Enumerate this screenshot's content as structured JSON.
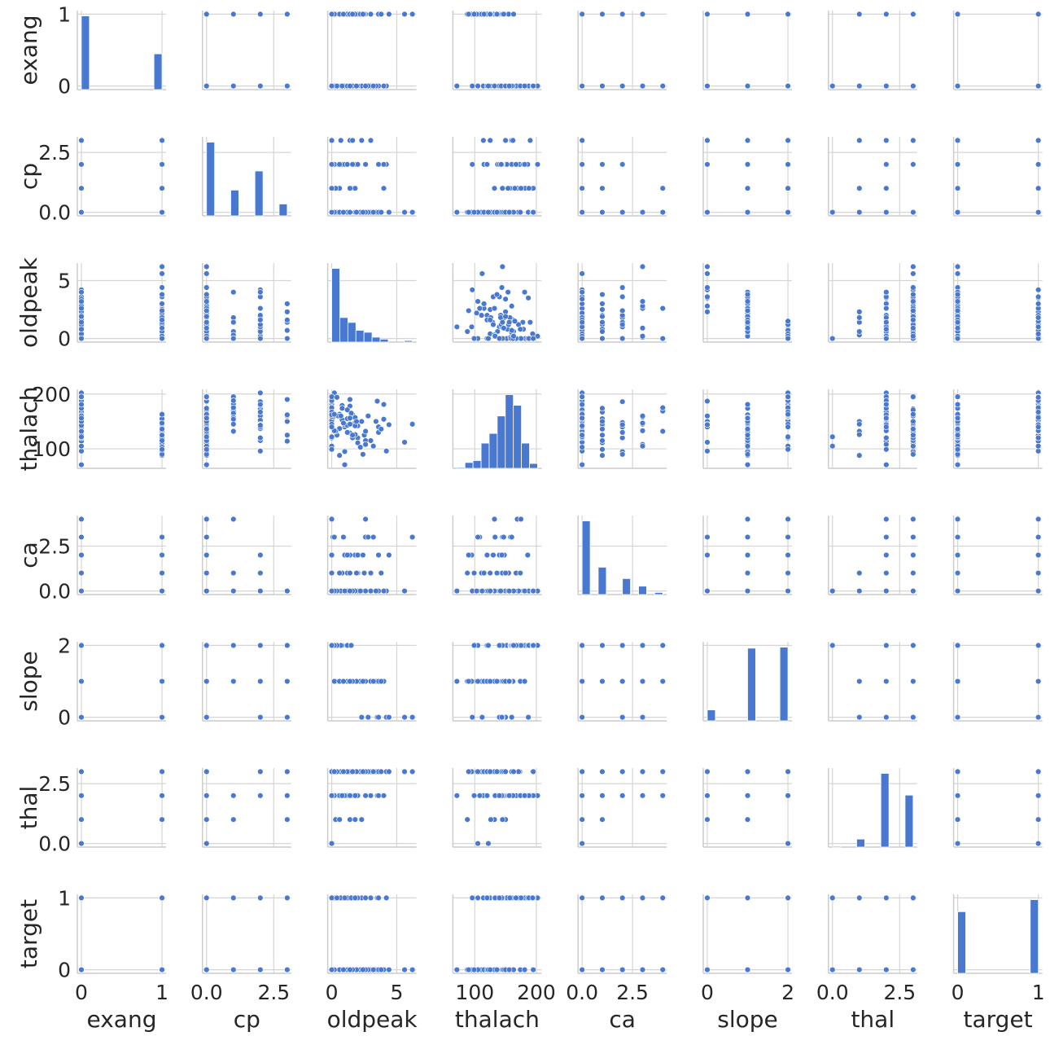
{
  "chart_data": {
    "type": "pairplot",
    "color": "#4878cf",
    "grid": true,
    "variables": [
      {
        "name": "exang",
        "range": [
          0,
          1
        ],
        "ticks": [
          0,
          1
        ],
        "tick_labels": [
          "0",
          "1"
        ]
      },
      {
        "name": "cp",
        "range": [
          0,
          3
        ],
        "ticks": [
          0,
          2.5
        ],
        "tick_labels": [
          "0.0",
          "2.5"
        ]
      },
      {
        "name": "oldpeak",
        "range": [
          0,
          6.2
        ],
        "ticks": [
          0,
          5
        ],
        "tick_labels": [
          "0",
          "5"
        ]
      },
      {
        "name": "thalach",
        "range": [
          71,
          202
        ],
        "ticks": [
          100,
          200
        ],
        "tick_labels": [
          "100",
          "200"
        ]
      },
      {
        "name": "ca",
        "range": [
          0,
          4
        ],
        "ticks": [
          0,
          2.5
        ],
        "tick_labels": [
          "0.0",
          "2.5"
        ]
      },
      {
        "name": "slope",
        "range": [
          0,
          2
        ],
        "ticks": [
          0,
          2
        ],
        "tick_labels": [
          "0",
          "2"
        ]
      },
      {
        "name": "thal",
        "range": [
          0,
          3
        ],
        "ticks": [
          0,
          2.5
        ],
        "tick_labels": [
          "0.0",
          "2.5"
        ]
      },
      {
        "name": "target",
        "range": [
          0,
          1
        ],
        "ticks": [
          0,
          1
        ],
        "tick_labels": [
          "0",
          "1"
        ]
      }
    ],
    "histograms": {
      "bins": 10,
      "exang": [
        204,
        0,
        0,
        0,
        0,
        0,
        0,
        0,
        0,
        99
      ],
      "cp": [
        143,
        0,
        0,
        50,
        0,
        0,
        87,
        0,
        0,
        23
      ],
      "oldpeak": [
        150,
        50,
        40,
        24,
        20,
        10,
        6,
        0,
        0,
        3
      ],
      "thalach": [
        1,
        6,
        8,
        26,
        36,
        54,
        76,
        65,
        26,
        5
      ],
      "ca": [
        175,
        0,
        65,
        0,
        0,
        38,
        0,
        20,
        0,
        5
      ],
      "slope": [
        21,
        0,
        0,
        0,
        0,
        140,
        0,
        0,
        0,
        142
      ],
      "thal": [
        2,
        0,
        0,
        18,
        0,
        0,
        166,
        0,
        0,
        117
      ],
      "target": [
        138,
        0,
        0,
        0,
        0,
        0,
        0,
        0,
        0,
        165
      ]
    },
    "columns": [
      "exang",
      "cp",
      "oldpeak",
      "thalach",
      "ca",
      "slope",
      "thal",
      "target"
    ],
    "records": [
      [
        0,
        2,
        0.0,
        172,
        0,
        2,
        2,
        1
      ],
      [
        0,
        1,
        1.4,
        178,
        0,
        2,
        2,
        1
      ],
      [
        0,
        1,
        0.6,
        163,
        0,
        2,
        2,
        1
      ],
      [
        0,
        0,
        3.5,
        187,
        0,
        0,
        2,
        1
      ],
      [
        1,
        0,
        0.8,
        153,
        0,
        2,
        2,
        1
      ],
      [
        0,
        2,
        0.0,
        173,
        0,
        2,
        3,
        1
      ],
      [
        0,
        2,
        1.6,
        162,
        0,
        1,
        2,
        1
      ],
      [
        0,
        3,
        2.3,
        150,
        0,
        0,
        1,
        1
      ],
      [
        0,
        1,
        0.0,
        174,
        1,
        2,
        2,
        1
      ],
      [
        0,
        2,
        0.5,
        160,
        0,
        2,
        2,
        1
      ],
      [
        0,
        0,
        1.0,
        140,
        0,
        1,
        2,
        1
      ],
      [
        1,
        0,
        1.2,
        155,
        1,
        1,
        2,
        1
      ],
      [
        0,
        3,
        1.4,
        190,
        0,
        2,
        2,
        1
      ],
      [
        0,
        2,
        0.2,
        202,
        0,
        2,
        2,
        1
      ],
      [
        0,
        1,
        0.0,
        195,
        0,
        2,
        2,
        1
      ],
      [
        0,
        2,
        1.8,
        148,
        2,
        1,
        2,
        1
      ],
      [
        0,
        0,
        0.4,
        125,
        0,
        1,
        3,
        1
      ],
      [
        1,
        2,
        2.6,
        115,
        0,
        1,
        2,
        1
      ],
      [
        0,
        1,
        0.0,
        169,
        4,
        2,
        2,
        1
      ],
      [
        0,
        2,
        0.0,
        152,
        0,
        2,
        2,
        1
      ],
      [
        0,
        3,
        3.0,
        114,
        0,
        1,
        2,
        1
      ],
      [
        0,
        0,
        0.1,
        158,
        3,
        2,
        2,
        1
      ],
      [
        0,
        2,
        0.8,
        179,
        0,
        2,
        2,
        1
      ],
      [
        0,
        1,
        0.0,
        182,
        0,
        2,
        2,
        1
      ],
      [
        0,
        2,
        4.2,
        96,
        0,
        0,
        3,
        1
      ],
      [
        0,
        2,
        0.6,
        137,
        1,
        1,
        2,
        1
      ],
      [
        1,
        0,
        2.0,
        142,
        0,
        1,
        3,
        1
      ],
      [
        0,
        3,
        0.0,
        159,
        0,
        2,
        2,
        1
      ],
      [
        0,
        0,
        1.2,
        171,
        0,
        2,
        3,
        1
      ],
      [
        0,
        2,
        0.0,
        186,
        2,
        2,
        2,
        1
      ],
      [
        0,
        1,
        1.5,
        165,
        0,
        2,
        2,
        1
      ],
      [
        0,
        2,
        0.0,
        145,
        1,
        2,
        3,
        1
      ],
      [
        1,
        1,
        0.3,
        132,
        0,
        1,
        1,
        1
      ],
      [
        0,
        0,
        0.0,
        105,
        0,
        2,
        0,
        1
      ],
      [
        0,
        2,
        2.0,
        120,
        2,
        1,
        2,
        1
      ],
      [
        0,
        3,
        0.7,
        160,
        0,
        2,
        3,
        1
      ],
      [
        0,
        1,
        0.0,
        175,
        4,
        2,
        2,
        1
      ],
      [
        0,
        2,
        1.0,
        144,
        0,
        1,
        2,
        1
      ],
      [
        0,
        0,
        0.2,
        133,
        3,
        1,
        2,
        1
      ],
      [
        0,
        1,
        0.0,
        188,
        0,
        2,
        2,
        1
      ],
      [
        0,
        2,
        3.6,
        140,
        0,
        0,
        2,
        1
      ],
      [
        1,
        0,
        0.0,
        120,
        0,
        2,
        2,
        1
      ],
      [
        0,
        2,
        0.0,
        167,
        1,
        2,
        2,
        1
      ],
      [
        0,
        0,
        0.4,
        194,
        0,
        2,
        3,
        1
      ],
      [
        0,
        1,
        1.8,
        157,
        0,
        1,
        2,
        1
      ],
      [
        1,
        0,
        6.2,
        145,
        3,
        0,
        3,
        0
      ],
      [
        1,
        0,
        5.6,
        112,
        0,
        0,
        3,
        0
      ],
      [
        0,
        0,
        1.0,
        71,
        0,
        1,
        2,
        0
      ],
      [
        1,
        0,
        2.6,
        108,
        3,
        1,
        2,
        0
      ],
      [
        1,
        0,
        1.4,
        129,
        2,
        1,
        3,
        0
      ],
      [
        1,
        0,
        2.5,
        125,
        1,
        1,
        3,
        0
      ],
      [
        0,
        0,
        3.4,
        150,
        0,
        1,
        3,
        0
      ],
      [
        1,
        0,
        3.6,
        130,
        2,
        1,
        3,
        0
      ],
      [
        1,
        0,
        1.8,
        142,
        0,
        1,
        3,
        0
      ],
      [
        0,
        1,
        4.0,
        154,
        0,
        1,
        2,
        0
      ],
      [
        1,
        0,
        2.0,
        111,
        1,
        1,
        3,
        0
      ],
      [
        1,
        0,
        0.0,
        140,
        2,
        2,
        3,
        0
      ],
      [
        0,
        2,
        1.2,
        143,
        1,
        1,
        3,
        0
      ],
      [
        1,
        0,
        4.4,
        144,
        2,
        0,
        3,
        0
      ],
      [
        0,
        0,
        0.8,
        174,
        1,
        1,
        2,
        0
      ],
      [
        1,
        0,
        1.0,
        95,
        2,
        1,
        3,
        0
      ],
      [
        0,
        3,
        0.0,
        162,
        0,
        2,
        2,
        0
      ],
      [
        1,
        0,
        3.0,
        115,
        1,
        1,
        3,
        0
      ],
      [
        0,
        0,
        2.8,
        160,
        3,
        0,
        3,
        0
      ],
      [
        1,
        0,
        0.6,
        88,
        1,
        1,
        1,
        0
      ],
      [
        0,
        2,
        1.6,
        120,
        0,
        1,
        3,
        0
      ],
      [
        1,
        0,
        2.2,
        103,
        0,
        1,
        3,
        0
      ],
      [
        0,
        0,
        0.0,
        195,
        0,
        2,
        3,
        0
      ],
      [
        1,
        0,
        1.2,
        130,
        2,
        1,
        3,
        0
      ],
      [
        1,
        1,
        1.4,
        145,
        1,
        1,
        1,
        0
      ],
      [
        0,
        0,
        3.2,
        105,
        3,
        1,
        3,
        0
      ],
      [
        1,
        0,
        0.2,
        163,
        0,
        2,
        3,
        0
      ],
      [
        0,
        2,
        4.0,
        181,
        0,
        1,
        2,
        0
      ],
      [
        1,
        0,
        1.8,
        126,
        0,
        1,
        1,
        0
      ],
      [
        0,
        0,
        2.6,
        132,
        4,
        1,
        3,
        0
      ],
      [
        1,
        0,
        0.9,
        147,
        3,
        1,
        3,
        0
      ],
      [
        0,
        0,
        0.0,
        122,
        0,
        2,
        0,
        0
      ],
      [
        1,
        0,
        2.4,
        90,
        2,
        1,
        3,
        0
      ],
      [
        0,
        0,
        1.9,
        150,
        1,
        1,
        3,
        0
      ],
      [
        1,
        3,
        1.6,
        125,
        0,
        1,
        3,
        0
      ],
      [
        0,
        0,
        1.4,
        156,
        0,
        1,
        2,
        0
      ],
      [
        1,
        0,
        3.8,
        136,
        1,
        1,
        3,
        0
      ],
      [
        1,
        0,
        0.0,
        99,
        1,
        2,
        2,
        0
      ]
    ]
  }
}
